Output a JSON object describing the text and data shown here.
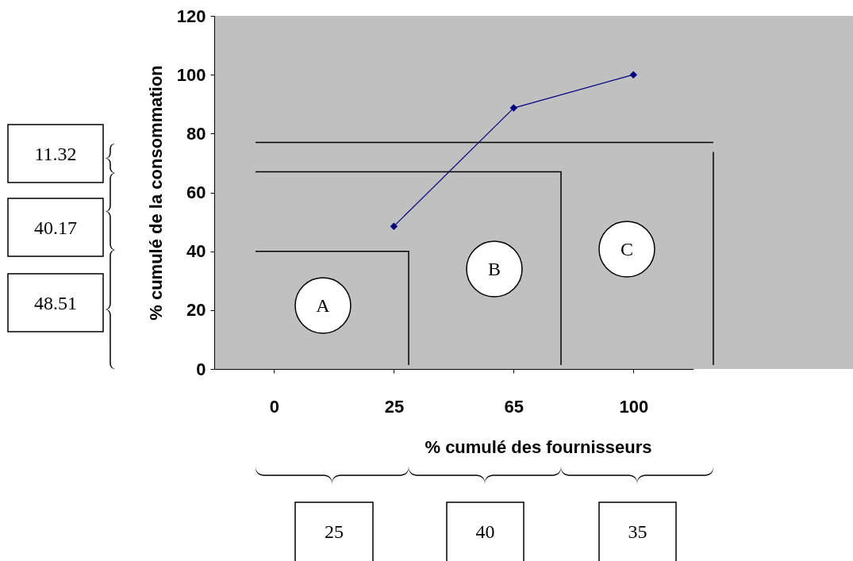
{
  "chart_data": {
    "type": "line",
    "xlabel": "% cumulé des fournisseurs",
    "ylabel": "% cumulé de la consommation",
    "categories": [
      "0",
      "25",
      "65",
      "100"
    ],
    "series": [
      {
        "color": "#000080",
        "values": [
          null,
          48.5,
          88.7,
          100
        ]
      }
    ],
    "ref_lines": [
      {
        "axis": "y",
        "value": 40,
        "color": "#000000"
      },
      {
        "axis": "y",
        "value": 67,
        "color": "#000000"
      },
      {
        "axis": "y",
        "value": 77,
        "color": "#000000"
      }
    ],
    "ylim": [
      0,
      120
    ],
    "yticks": [
      0,
      20,
      40,
      60,
      80,
      100,
      120
    ],
    "marker": "diamond",
    "grid": false,
    "annotations": [
      "A",
      "B",
      "C",
      "11.32",
      "40.17",
      "48.51",
      "25",
      "40",
      "35"
    ]
  }
}
